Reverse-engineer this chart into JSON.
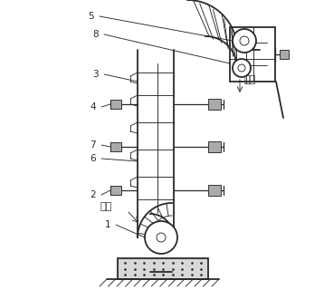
{
  "bg_color": "#ffffff",
  "line_color": "#2a2a2a",
  "figsize": [
    3.58,
    3.2
  ],
  "dpi": 100,
  "lw_main": 1.3,
  "lw_thin": 0.65,
  "lw_med": 0.9,
  "bracket_color": "#555555",
  "gray_fill": "#cccccc",
  "dark_fill": "#888888"
}
